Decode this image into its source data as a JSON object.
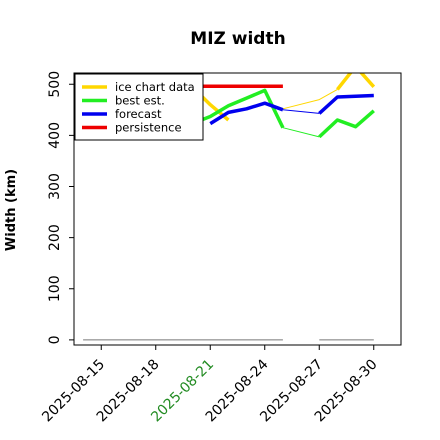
{
  "chart_data": {
    "type": "line",
    "title": "MIZ width",
    "xlabel": "",
    "ylabel": "Width (km)",
    "ylim": [
      -10,
      522
    ],
    "xlim": [
      "2025-08-13 12:00",
      "2025-08-31 12:00"
    ],
    "yticks": [
      0,
      100,
      200,
      300,
      400,
      500
    ],
    "xticks": [
      {
        "date": "2025-08-15",
        "label": "2025-08-15",
        "color": "#000000"
      },
      {
        "date": "2025-08-18",
        "label": "2025-08-18",
        "color": "#000000"
      },
      {
        "date": "2025-08-21",
        "label": "2025-08-21",
        "color": "#228B22"
      },
      {
        "date": "2025-08-24",
        "label": "2025-08-24",
        "color": "#000000"
      },
      {
        "date": "2025-08-27",
        "label": "2025-08-27",
        "color": "#000000"
      },
      {
        "date": "2025-08-30",
        "label": "2025-08-30",
        "color": "#000000"
      }
    ],
    "grid": false,
    "legend_position": "top-left",
    "legend": [
      {
        "name": "ice chart data",
        "color": "#FFD700"
      },
      {
        "name": "best est.",
        "color": "#22EE22"
      },
      {
        "name": "forecast",
        "color": "#0000EE"
      },
      {
        "name": "persistence",
        "color": "#EE0000"
      }
    ],
    "series": [
      {
        "name": "ice chart data",
        "color": "#FFD700",
        "segments": [
          {
            "x": [
              "2025-08-18",
              "2025-08-19",
              "2025-08-20",
              "2025-08-21",
              "2025-08-22"
            ],
            "y": [
              432,
              467,
              495,
              460,
              430
            ]
          },
          {
            "x": [
              "2025-08-28",
              "2025-08-29",
              "2025-08-30"
            ],
            "y": [
              490,
              535,
              495
            ]
          }
        ]
      },
      {
        "name": "ice chart data (thin)",
        "color": "#FFD700",
        "thin": true,
        "segments": [
          {
            "x": [
              "2025-08-25",
              "2025-08-27",
              "2025-08-28"
            ],
            "y": [
              452,
              470,
              490
            ]
          }
        ]
      },
      {
        "name": "best est.",
        "color": "#22EE22",
        "segments": [
          {
            "x": [
              "2025-08-19",
              "2025-08-20",
              "2025-08-21",
              "2025-08-22",
              "2025-08-23",
              "2025-08-24",
              "2025-08-25"
            ],
            "y": [
              415,
              423,
              437,
              458,
              473,
              488,
              415
            ]
          },
          {
            "x": [
              "2025-08-27",
              "2025-08-28",
              "2025-08-29",
              "2025-08-30"
            ],
            "y": [
              397,
              430,
              417,
              448
            ]
          }
        ]
      },
      {
        "name": "best est. (thin)",
        "color": "#22EE22",
        "thin": true,
        "segments": [
          {
            "x": [
              "2025-08-25",
              "2025-08-27"
            ],
            "y": [
              415,
              397
            ]
          }
        ]
      },
      {
        "name": "forecast",
        "color": "#0000EE",
        "segments": [
          {
            "x": [
              "2025-08-21",
              "2025-08-22",
              "2025-08-23",
              "2025-08-24",
              "2025-08-25"
            ],
            "y": [
              423,
              445,
              452,
              463,
              450
            ]
          },
          {
            "x": [
              "2025-08-27",
              "2025-08-28",
              "2025-08-30"
            ],
            "y": [
              443,
              475,
              478
            ]
          }
        ]
      },
      {
        "name": "forecast (thin)",
        "color": "#0000EE",
        "thin": true,
        "segments": [
          {
            "x": [
              "2025-08-25",
              "2025-08-27"
            ],
            "y": [
              450,
              443
            ]
          }
        ]
      },
      {
        "name": "persistence",
        "color": "#EE0000",
        "segments": [
          {
            "x": [
              "2025-08-20",
              "2025-08-25"
            ],
            "y": [
              496,
              496
            ]
          }
        ]
      },
      {
        "name": "baseline",
        "color": "#777777",
        "thin": true,
        "segments": [
          {
            "x": [
              "2025-08-14",
              "2025-08-25"
            ],
            "y": [
              0,
              0
            ]
          },
          {
            "x": [
              "2025-08-27",
              "2025-08-30"
            ],
            "y": [
              0,
              0
            ]
          }
        ]
      }
    ]
  }
}
